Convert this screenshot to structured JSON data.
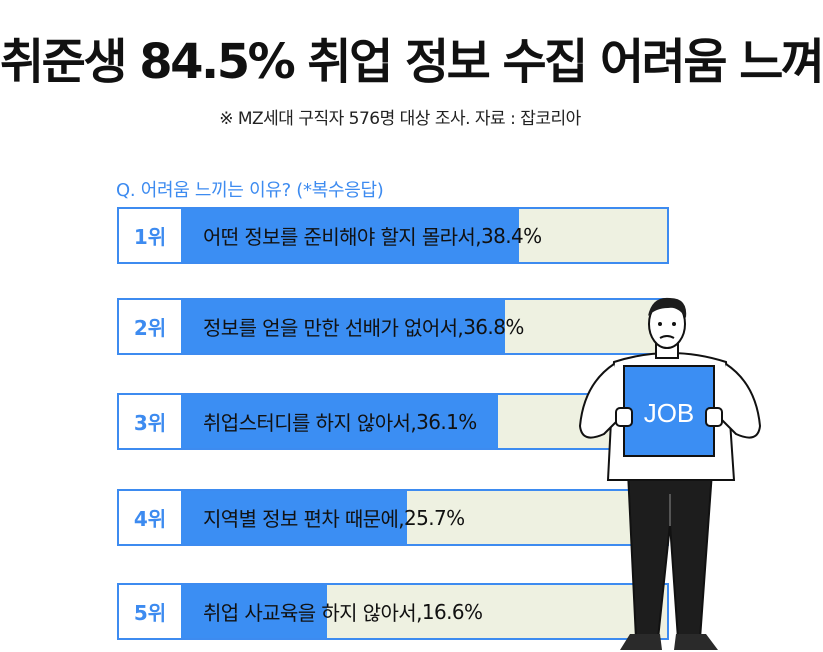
{
  "header": {
    "title": "취준생 84.5% 취업 정보 수집 어려움 느껴",
    "subtitle": "※ MZ세대 구직자 576명 대상 조사. 자료 : 잡코리아"
  },
  "question": "Q. 어려움 느끼는 이유? (*복수응답)",
  "chart_data": {
    "type": "bar",
    "orientation": "horizontal",
    "categories": [
      "1위",
      "2위",
      "3위",
      "4위",
      "5위"
    ],
    "labels": [
      "어떤 정보를 준비해야 할지 몰라서,",
      "정보를 얻을 만한 선배가 없어서,",
      "취업스터디를 하지 않아서,",
      "지역별 정보 편차 때문에,",
      "취업 사교육을 하지 않아서,"
    ],
    "values": [
      38.4,
      36.8,
      36.1,
      25.7,
      16.6
    ],
    "value_labels": [
      "38.4%",
      "36.8%",
      "36.1%",
      "25.7%",
      "16.6%"
    ],
    "unit": "%",
    "xlim": [
      0,
      55.5
    ],
    "colors": {
      "bar": "#3b8ef3",
      "track": "#eef1e1",
      "border": "#3d8bf0",
      "rank_text": "#3d8bf0"
    }
  },
  "illustration": {
    "sign_text": "JOB"
  }
}
